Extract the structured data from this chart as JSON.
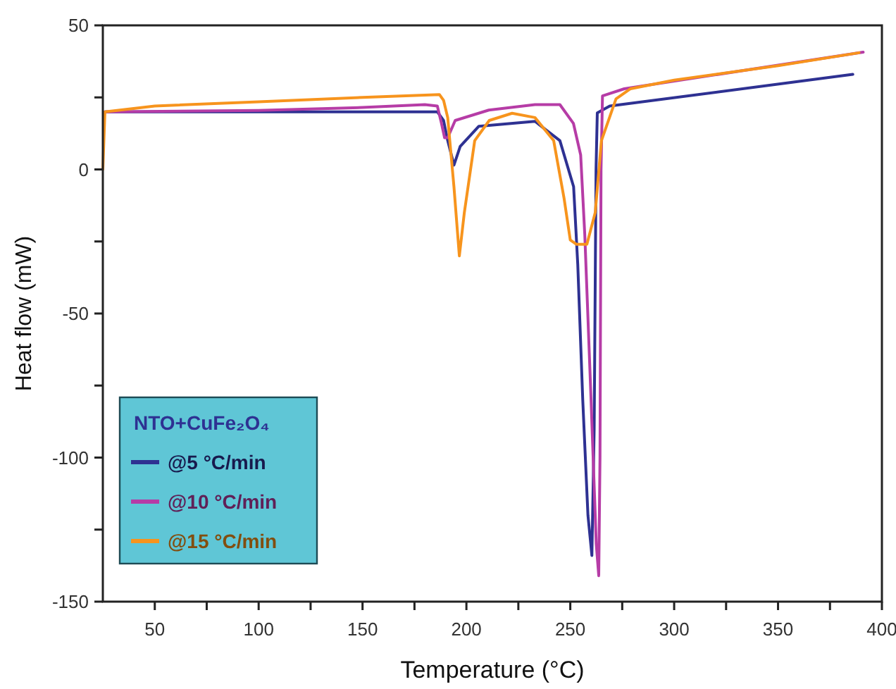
{
  "chart_data": {
    "type": "line",
    "xlabel": "Temperature (°C)",
    "ylabel": "Heat flow (mW)",
    "legend_title": "NTO+CuFe₂O₄",
    "legend": "bottom left",
    "grid": false,
    "marker": "none",
    "line_style": "solid",
    "xlim": [
      25,
      400
    ],
    "xticks": [
      50,
      {
        "value": 75,
        "label": null
      },
      100,
      {
        "value": 125,
        "label": null
      },
      150,
      {
        "value": 175,
        "label": null
      },
      200,
      {
        "value": 225,
        "label": null
      },
      250,
      {
        "value": 275,
        "label": null
      },
      300,
      {
        "value": 325,
        "label": null
      },
      350,
      {
        "value": 375,
        "label": null
      },
      400
    ],
    "ylim": [
      -150,
      50
    ],
    "yticks": [
      -150,
      {
        "value": -125,
        "label": null
      },
      -100,
      {
        "value": -75,
        "label": null
      },
      -50,
      {
        "value": -25,
        "label": null
      },
      0,
      {
        "value": 25,
        "label": null
      },
      50
    ],
    "series": [
      {
        "name": "@5 °C/min",
        "color": "#2e3192",
        "x": [
          26,
          100,
          186,
          189,
          191,
          194,
          197,
          206,
          233,
          245,
          251.6,
          253.6,
          256,
          258.5,
          260.4,
          261.5,
          262.4,
          263,
          269,
          386
        ],
        "values": [
          20,
          20,
          20,
          17,
          10,
          1.5,
          8,
          15,
          16.7,
          10,
          -6,
          -33,
          -80,
          -120,
          -134,
          -90,
          0,
          19.6,
          22,
          33
        ]
      },
      {
        "name": "@10 °C/min",
        "color": "#b63ca6",
        "x": [
          26,
          100,
          150,
          180,
          186,
          188,
          189.5,
          191,
          194.6,
          210.8,
          233,
          245,
          251.5,
          255,
          257,
          260,
          262.5,
          263.7,
          264.3,
          264.8,
          265.5,
          276,
          391
        ],
        "values": [
          20,
          20.5,
          21.5,
          22.5,
          22,
          16,
          11,
          11,
          17,
          20.6,
          22.5,
          22.5,
          16,
          5,
          -23,
          -80,
          -130,
          -141,
          -100,
          0,
          25.5,
          28,
          40.7
        ]
      },
      {
        "name": "@15 °C/min",
        "color": "#f7941d",
        "x": [
          25,
          26,
          50,
          100,
          150,
          187,
          189,
          191,
          194,
          196.6,
          199,
          204,
          211,
          222,
          233,
          242,
          247,
          250,
          253,
          258,
          262,
          265,
          272,
          279,
          300,
          350,
          389
        ],
        "values": [
          0,
          20,
          22,
          23.5,
          25,
          26,
          24,
          18,
          -6,
          -30,
          -15,
          10,
          17,
          19.5,
          18,
          10,
          -10,
          -24.5,
          -26,
          -26,
          -15,
          10,
          24.5,
          28,
          31,
          36,
          40.5
        ]
      }
    ]
  }
}
